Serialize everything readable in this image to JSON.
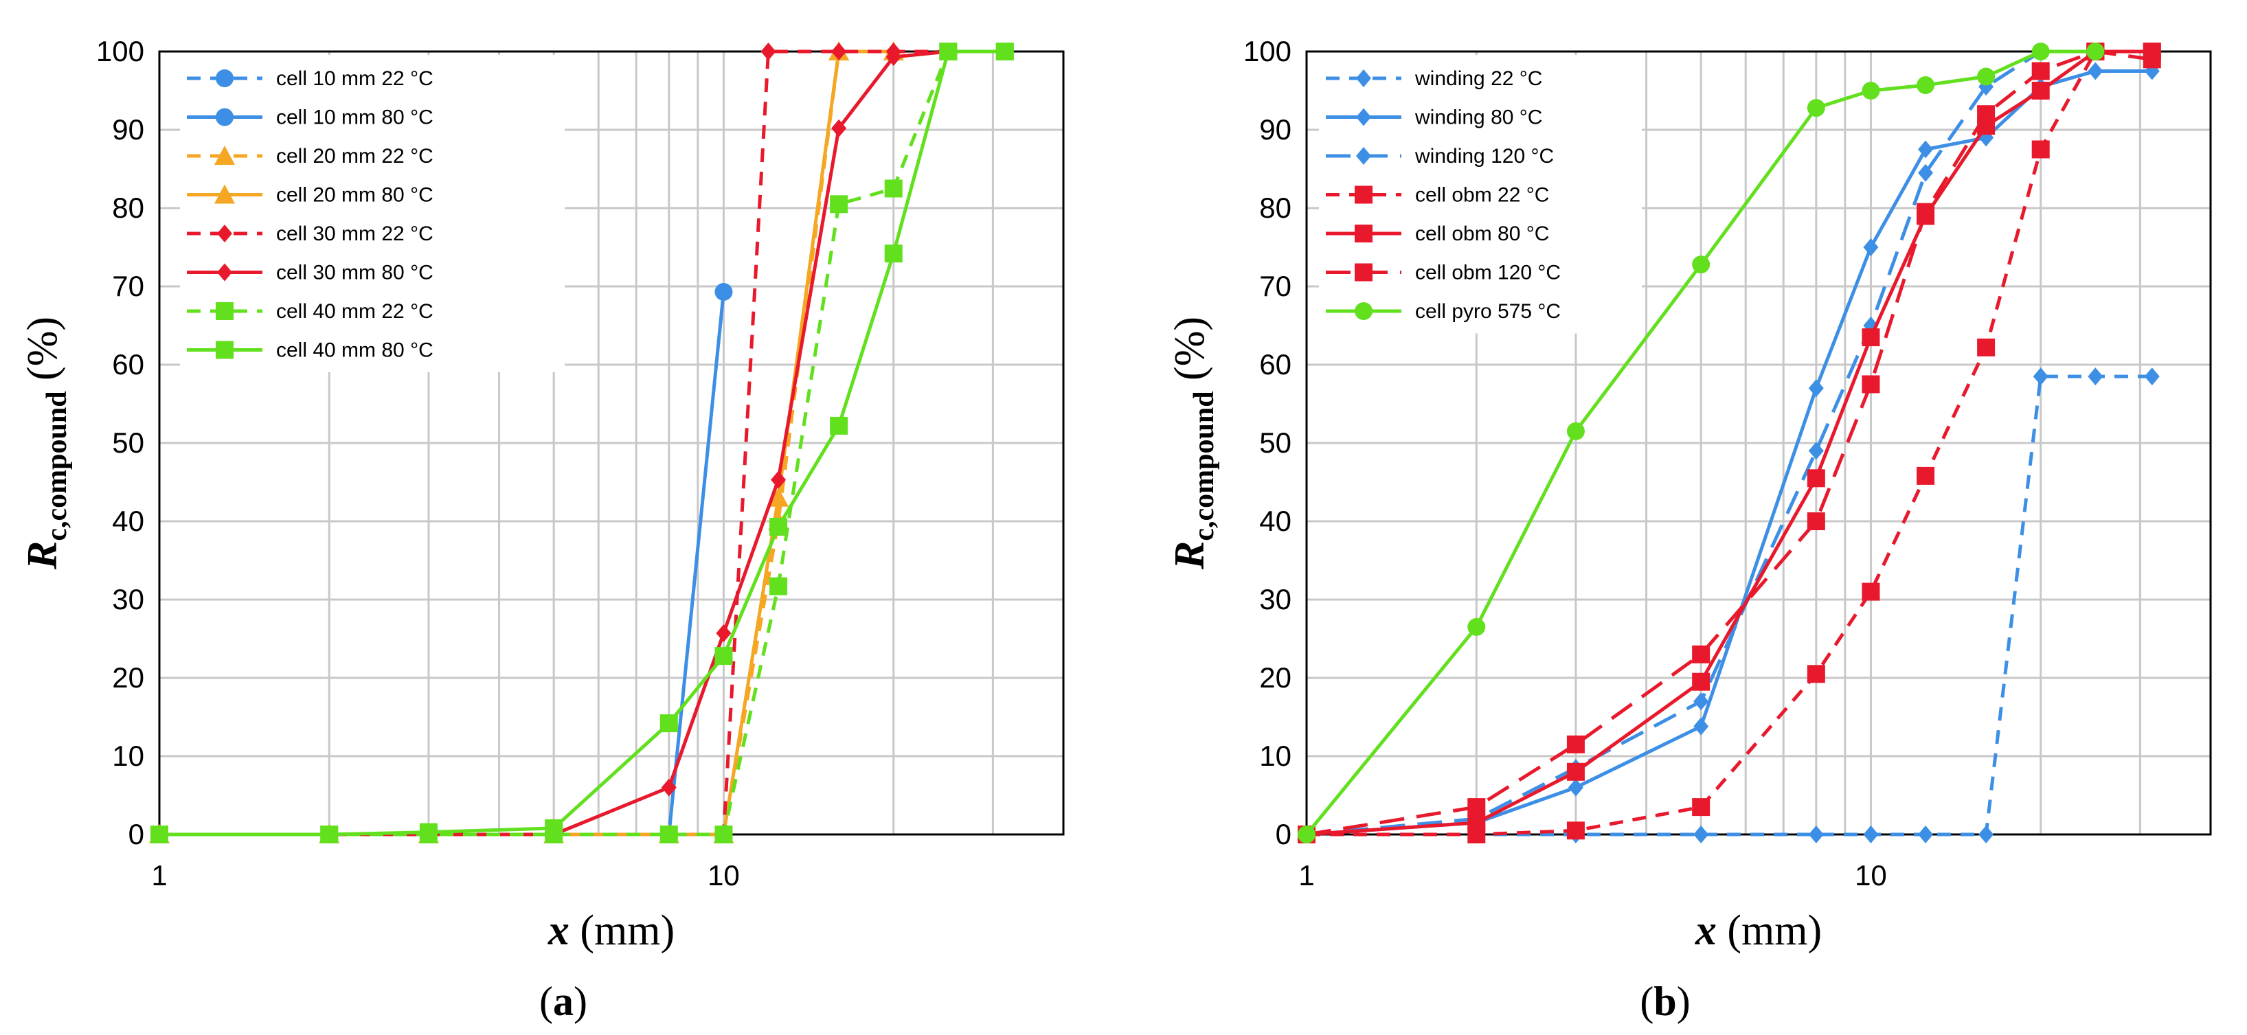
{
  "chart_data": [
    {
      "type": "line",
      "xscale": "log",
      "xlim": [
        1,
        40
      ],
      "ylim": [
        0,
        100
      ],
      "xticks": [
        "1",
        "10"
      ],
      "yticks": [
        "0",
        "10",
        "20",
        "30",
        "40",
        "50",
        "60",
        "70",
        "80",
        "90",
        "100"
      ],
      "ylabel_main": "R",
      "ylabel_sub": "c,compound",
      "ylabel_unit": "(%)",
      "xlabel_var": "x",
      "xlabel_unit": "(mm)",
      "panel_label": "(a)",
      "panel_letter": "a",
      "legend_position": "top-left",
      "series": [
        {
          "name": "cell 10 mm 22 °C",
          "color": "#3d8fe6",
          "dash": "dashed",
          "marker": "circle",
          "x": [
            1,
            2,
            3,
            5,
            8,
            10
          ],
          "y": [
            0,
            0,
            0,
            0,
            0,
            0
          ]
        },
        {
          "name": "cell 10 mm 80 °C",
          "color": "#3d8fe6",
          "dash": "solid",
          "marker": "circle",
          "x": [
            1,
            2,
            3,
            5,
            8,
            10
          ],
          "y": [
            0,
            0,
            0,
            0,
            0,
            69.3
          ]
        },
        {
          "name": "cell 20 mm 22 °C",
          "color": "#f5a623",
          "dash": "dashed",
          "marker": "triangle",
          "x": [
            1,
            2,
            3,
            5,
            8,
            10,
            12.5,
            16,
            20
          ],
          "y": [
            0,
            0,
            0,
            0,
            0,
            0,
            40,
            100,
            100
          ]
        },
        {
          "name": "cell 20 mm 80 °C",
          "color": "#f5a623",
          "dash": "solid",
          "marker": "triangle",
          "x": [
            1,
            2,
            3,
            5,
            8,
            10,
            12.5,
            16,
            20
          ],
          "y": [
            0,
            0,
            0,
            0,
            0,
            0,
            43,
            100,
            100
          ]
        },
        {
          "name": "cell 30 mm 22 °C",
          "color": "#e8192c",
          "dash": "dashed",
          "marker": "diamond",
          "x": [
            1,
            2,
            3,
            5,
            8,
            10,
            12,
            16,
            20,
            25
          ],
          "y": [
            0,
            0,
            0,
            0,
            0,
            0,
            100,
            100,
            100,
            100
          ]
        },
        {
          "name": "cell 30 mm 80 °C",
          "color": "#e8192c",
          "dash": "solid",
          "marker": "diamond",
          "x": [
            1,
            2,
            3,
            5,
            8,
            10,
            12.5,
            16,
            20,
            25
          ],
          "y": [
            0,
            0,
            0,
            0,
            6,
            25.7,
            45.3,
            90.2,
            99.3,
            100
          ]
        },
        {
          "name": "cell 40 mm 22 °C",
          "color": "#62e01e",
          "dash": "dashed",
          "marker": "square",
          "x": [
            1,
            2,
            3,
            5,
            8,
            10,
            12.5,
            16,
            20,
            25,
            31.5
          ],
          "y": [
            0,
            0,
            0,
            0,
            0,
            0,
            31.7,
            80.5,
            82.5,
            100,
            100
          ]
        },
        {
          "name": "cell 40 mm 80 °C",
          "color": "#62e01e",
          "dash": "solid",
          "marker": "square",
          "x": [
            1,
            2,
            3,
            5,
            8,
            10,
            12.5,
            16,
            20,
            25,
            31.5
          ],
          "y": [
            0,
            0,
            0.3,
            0.8,
            14.2,
            22.8,
            39.3,
            52.2,
            74.2,
            100,
            100
          ]
        }
      ]
    },
    {
      "type": "line",
      "xscale": "log",
      "xlim": [
        1,
        40
      ],
      "ylim": [
        0,
        100
      ],
      "xticks": [
        "1",
        "10"
      ],
      "yticks": [
        "0",
        "10",
        "20",
        "30",
        "40",
        "50",
        "60",
        "70",
        "80",
        "90",
        "100"
      ],
      "ylabel_main": "R",
      "ylabel_sub": "c,compound",
      "ylabel_unit": "(%)",
      "xlabel_var": "x",
      "xlabel_unit": "(mm)",
      "panel_label": "(b)",
      "panel_letter": "b",
      "legend_position": "top-left",
      "series": [
        {
          "name": "winding 22 °C",
          "color": "#3d8fe6",
          "dash": "dashed",
          "marker": "diamond",
          "x": [
            1,
            2,
            3,
            5,
            8,
            10,
            12.5,
            16,
            20,
            25,
            31.5
          ],
          "y": [
            0,
            0,
            0,
            0,
            0,
            0,
            0,
            0,
            58.5,
            58.5,
            58.5
          ]
        },
        {
          "name": "winding 80 °C",
          "color": "#3d8fe6",
          "dash": "solid",
          "marker": "diamond",
          "x": [
            1,
            2,
            3,
            5,
            8,
            10,
            12.5,
            16,
            20,
            25,
            31.5
          ],
          "y": [
            0,
            1.5,
            6,
            13.8,
            57,
            75,
            87.5,
            89,
            95.5,
            97.5,
            97.5
          ]
        },
        {
          "name": "winding 120 °C",
          "color": "#3d8fe6",
          "dash": "longdash",
          "marker": "diamond",
          "x": [
            1,
            2,
            3,
            5,
            8,
            10,
            12.5,
            16,
            20,
            25,
            31.5
          ],
          "y": [
            0,
            2,
            8.5,
            17,
            49,
            65,
            84.5,
            95.5,
            100,
            100,
            100
          ]
        },
        {
          "name": "cell obm 22 °C",
          "color": "#e8192c",
          "dash": "dashed",
          "marker": "square",
          "x": [
            1,
            2,
            3,
            5,
            8,
            10,
            12.5,
            16,
            20,
            25,
            31.5
          ],
          "y": [
            0,
            0,
            0.5,
            3.5,
            20.5,
            31,
            45.8,
            62.2,
            87.5,
            100,
            100
          ]
        },
        {
          "name": "cell obm 80 °C",
          "color": "#e8192c",
          "dash": "solid",
          "marker": "square",
          "x": [
            1,
            2,
            3,
            5,
            8,
            10,
            12.5,
            16,
            20,
            25,
            31.5
          ],
          "y": [
            0,
            1.5,
            8,
            19.5,
            45.5,
            63.5,
            79,
            90.5,
            95,
            100,
            100
          ]
        },
        {
          "name": "cell obm 120 °C",
          "color": "#e8192c",
          "dash": "longdash",
          "marker": "square",
          "x": [
            1,
            2,
            3,
            5,
            8,
            10,
            12.5,
            16,
            20,
            25,
            31.5
          ],
          "y": [
            0,
            3.5,
            11.5,
            23,
            40,
            57.5,
            79.5,
            92,
            97.5,
            100,
            99
          ]
        },
        {
          "name": "cell pyro 575 °C",
          "color": "#62e01e",
          "dash": "solid",
          "marker": "circle",
          "x": [
            1,
            2,
            3,
            5,
            8,
            10,
            12.5,
            16,
            20,
            25
          ],
          "y": [
            0,
            26.5,
            51.5,
            72.8,
            92.8,
            95,
            95.7,
            96.8,
            100,
            100
          ]
        }
      ]
    }
  ]
}
